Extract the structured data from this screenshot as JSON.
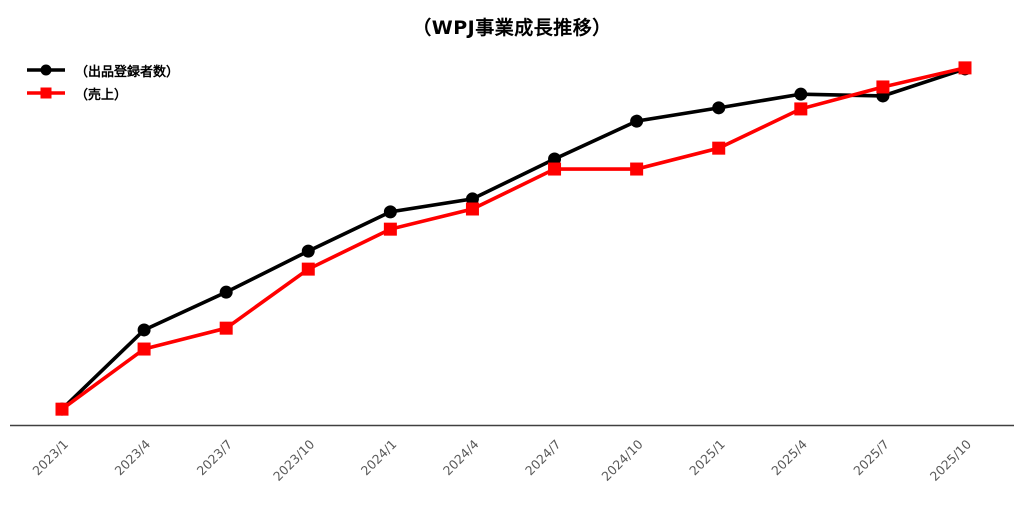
{
  "chart_data": {
    "type": "line",
    "title": "（WPJ事業成長推移）",
    "categories": [
      "2023/1",
      "2023/4",
      "2023/7",
      "2023/10",
      "2024/1",
      "2024/4",
      "2024/7",
      "2024/10",
      "2025/1",
      "2025/4",
      "2025/7",
      "2025/10"
    ],
    "series": [
      {
        "name": "（出品登録者数）",
        "marker": "circle",
        "color": "#000000",
        "values": [
          4.4,
          26.4,
          36.9,
          48.3,
          59.2,
          62.8,
          73.9,
          84.4,
          88.1,
          91.9,
          91.4,
          98.9
        ]
      },
      {
        "name": "（売上）",
        "marker": "square",
        "color": "#ff0000",
        "values": [
          4.4,
          21.1,
          26.9,
          43.3,
          54.4,
          60.0,
          71.1,
          71.1,
          76.9,
          87.8,
          93.9,
          99.2
        ]
      }
    ],
    "ylim": [
      0,
      100
    ],
    "y_axis_visible": false,
    "gridlines": false,
    "legend_position": "top-left",
    "axis_color": "#404040",
    "tick_label_color": "#595959"
  }
}
